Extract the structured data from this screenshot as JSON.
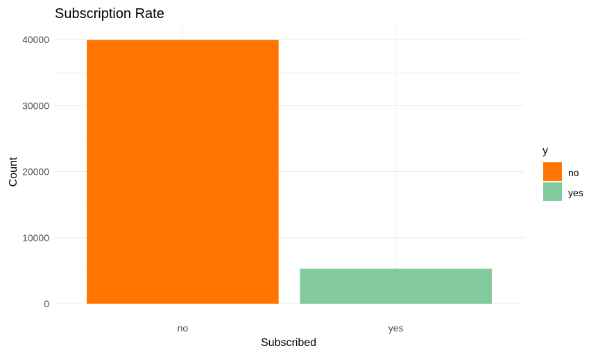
{
  "chart_data": {
    "type": "bar",
    "title": "Subscription Rate",
    "xlabel": "Subscribed",
    "ylabel": "Count",
    "categories": [
      "no",
      "yes"
    ],
    "values": [
      39922,
      5289
    ],
    "colors": [
      "#FF7500",
      "#83C99E"
    ],
    "ylim": [
      0,
      42000
    ],
    "yticks": [
      0,
      10000,
      20000,
      30000,
      40000
    ],
    "grid": true,
    "legend": {
      "title": "y",
      "position": "right",
      "entries": [
        {
          "label": "no",
          "color": "#FF7500"
        },
        {
          "label": "yes",
          "color": "#83C99E"
        }
      ]
    }
  }
}
